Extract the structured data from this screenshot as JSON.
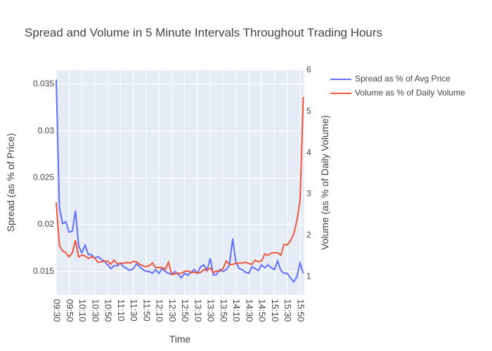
{
  "chart_data": {
    "type": "line",
    "title": "Spread and Volume in 5 Minute Intervals Throughout Trading Hours",
    "x_label": "Time",
    "y_label": "Spread (as % of Price)",
    "y2_label": "Volume (as % of Daily Volume)",
    "categories": [
      "09:30",
      "09:35",
      "09:40",
      "09:45",
      "09:50",
      "09:55",
      "10:00",
      "10:05",
      "10:10",
      "10:15",
      "10:20",
      "10:25",
      "10:30",
      "10:35",
      "10:40",
      "10:45",
      "10:50",
      "10:55",
      "11:00",
      "11:05",
      "11:10",
      "11:15",
      "11:20",
      "11:25",
      "11:30",
      "11:35",
      "11:40",
      "11:45",
      "11:50",
      "11:55",
      "12:00",
      "12:05",
      "12:10",
      "12:15",
      "12:20",
      "12:25",
      "12:30",
      "12:35",
      "12:40",
      "12:45",
      "12:50",
      "12:55",
      "13:00",
      "13:05",
      "13:10",
      "13:15",
      "13:20",
      "13:25",
      "13:30",
      "13:35",
      "13:40",
      "13:45",
      "13:50",
      "13:55",
      "14:00",
      "14:05",
      "14:10",
      "14:15",
      "14:20",
      "14:25",
      "14:30",
      "14:35",
      "14:40",
      "14:45",
      "14:50",
      "14:55",
      "15:00",
      "15:05",
      "15:10",
      "15:15",
      "15:20",
      "15:25",
      "15:30",
      "15:35",
      "15:40",
      "15:45",
      "15:50",
      "15:55"
    ],
    "series": [
      {
        "name": "Spread as % of Avg Price",
        "color": "#636efa",
        "axis": "y",
        "values": [
          0.0355,
          0.0218,
          0.0201,
          0.0203,
          0.0192,
          0.0193,
          0.0215,
          0.0177,
          0.017,
          0.0178,
          0.0168,
          0.0168,
          0.0164,
          0.0166,
          0.0163,
          0.0161,
          0.0157,
          0.0153,
          0.0156,
          0.0156,
          0.0159,
          0.0155,
          0.0153,
          0.0151,
          0.0153,
          0.0158,
          0.0155,
          0.0152,
          0.015,
          0.015,
          0.0148,
          0.0152,
          0.0148,
          0.0153,
          0.015,
          0.0148,
          0.0147,
          0.015,
          0.0147,
          0.0143,
          0.0148,
          0.0146,
          0.0149,
          0.0152,
          0.0148,
          0.0155,
          0.0157,
          0.0151,
          0.0164,
          0.0146,
          0.0147,
          0.0152,
          0.015,
          0.0152,
          0.0157,
          0.0185,
          0.016,
          0.0153,
          0.0152,
          0.0149,
          0.0148,
          0.0155,
          0.0153,
          0.0151,
          0.0157,
          0.0154,
          0.0157,
          0.0154,
          0.0152,
          0.0161,
          0.0151,
          0.0148,
          0.0148,
          0.0143,
          0.0139,
          0.0144,
          0.0159,
          0.0148
        ]
      },
      {
        "name": "Volume as % of Daily Volume",
        "color": "#EF553B",
        "axis": "y2",
        "values": [
          2.8,
          1.75,
          1.62,
          1.58,
          1.48,
          1.58,
          1.88,
          1.48,
          1.52,
          1.5,
          1.44,
          1.48,
          1.45,
          1.35,
          1.36,
          1.37,
          1.38,
          1.3,
          1.4,
          1.32,
          1.31,
          1.33,
          1.34,
          1.33,
          1.37,
          1.36,
          1.3,
          1.26,
          1.24,
          1.27,
          1.33,
          1.22,
          1.22,
          1.22,
          1.18,
          1.35,
          1.05,
          1.07,
          1.08,
          1.08,
          1.13,
          1.14,
          1.1,
          1.11,
          1.09,
          1.1,
          1.17,
          1.15,
          1.21,
          1.1,
          1.14,
          1.13,
          1.2,
          1.38,
          1.29,
          1.3,
          1.32,
          1.33,
          1.33,
          1.35,
          1.32,
          1.3,
          1.4,
          1.36,
          1.38,
          1.55,
          1.52,
          1.57,
          1.58,
          1.58,
          1.52,
          1.78,
          1.77,
          1.87,
          2.03,
          2.35,
          2.85,
          5.35
        ]
      }
    ],
    "ylim": [
      0.0125,
      0.0365
    ],
    "yticks": [
      0.015,
      0.02,
      0.025,
      0.03,
      0.035
    ],
    "y2lim": [
      0.56,
      6
    ],
    "y2ticks": [
      1,
      2,
      3,
      4,
      5,
      6
    ],
    "grid": true,
    "legend": "right"
  }
}
